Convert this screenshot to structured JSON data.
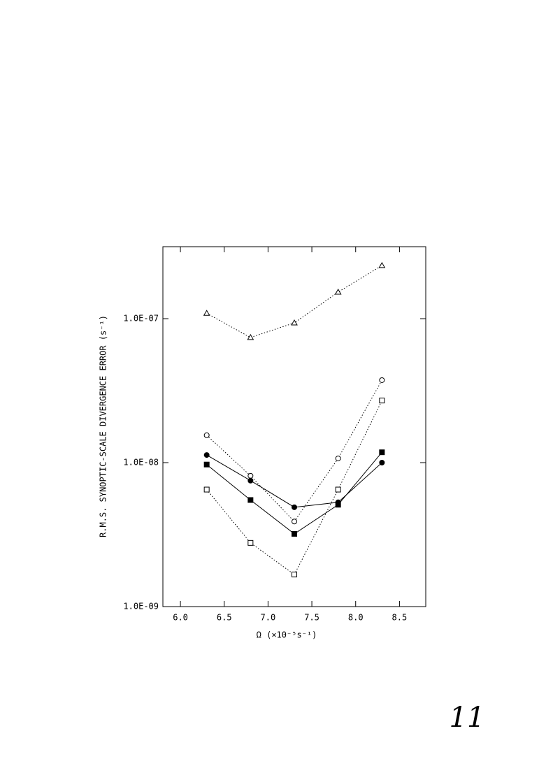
{
  "chart_data": {
    "type": "line",
    "x_label": "Ω (×10⁻⁵s⁻¹)",
    "y_label": "R.M.S. SYNOPTIC-SCALE DIVERGENCE ERROR (s⁻¹)",
    "x": [
      6.3,
      6.8,
      7.3,
      7.8,
      8.3
    ],
    "series": [
      {
        "color": "#000000",
        "marker": "open-triangle",
        "dash": "dotted",
        "values": [
          1.09e-07,
          7.4e-08,
          9.35e-08,
          1.53e-07,
          2.34e-07
        ]
      },
      {
        "color": "#000000",
        "marker": "open-circle",
        "dash": "dotted",
        "values": [
          1.55e-08,
          8.1e-09,
          3.9e-09,
          1.07e-08,
          3.74e-08
        ]
      },
      {
        "color": "#000000",
        "marker": "open-square",
        "dash": "dotted",
        "values": [
          6.5e-09,
          2.77e-09,
          1.67e-09,
          6.5e-09,
          2.7e-08
        ]
      },
      {
        "color": "#000000",
        "marker": "filled-circle",
        "dash": "solid",
        "values": [
          1.13e-08,
          7.5e-09,
          4.9e-09,
          5.3e-09,
          1e-08
        ]
      },
      {
        "color": "#000000",
        "marker": "filled-square",
        "dash": "solid",
        "values": [
          9.7e-09,
          5.5e-09,
          3.2e-09,
          5.1e-09,
          1.18e-08
        ]
      }
    ],
    "xlim": [
      5.8,
      8.8
    ],
    "xticks": [
      {
        "value": 6,
        "label": "6.0"
      },
      6.5,
      {
        "value": 7,
        "label": "7.0"
      },
      7.5,
      {
        "value": 8,
        "label": "8.0"
      },
      8.5
    ],
    "ylim": [
      1e-09,
      3.162e-07
    ],
    "yticks": [
      {
        "value": 1e-09,
        "label": "1.0E-09"
      },
      {
        "value": 1e-08,
        "label": "1.0E-08"
      },
      {
        "value": 1e-07,
        "label": "1.0E-07"
      }
    ],
    "y_log": true,
    "grid": false
  },
  "page_number": "11"
}
